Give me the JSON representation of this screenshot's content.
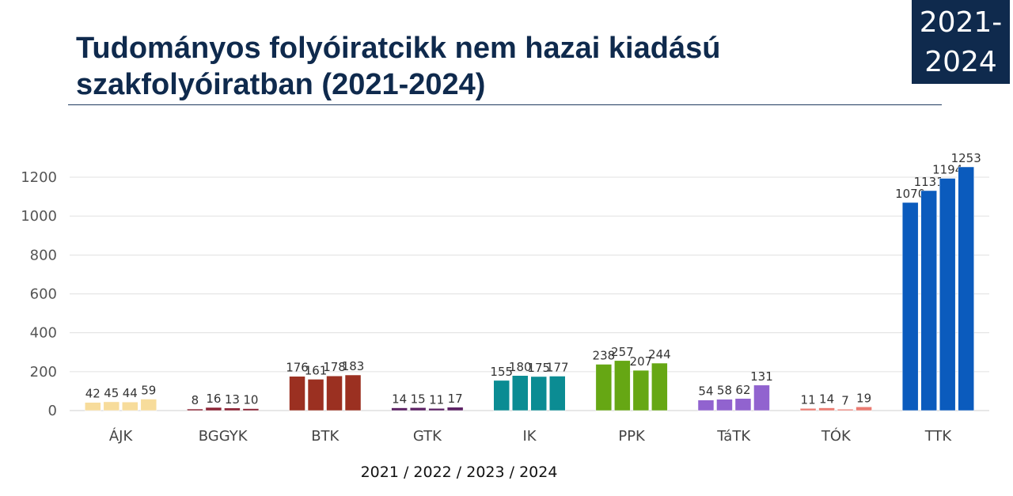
{
  "header": {
    "title_line1": "Tudományos folyóiratcikk nem hazai kiadású",
    "title_line2": "szakfolyóiratban (2021-2024)",
    "badge_line1": "2021-",
    "badge_line2": "2024"
  },
  "colors": {
    "title": "#0f2a4d",
    "badge_bg": "#0f2a4d",
    "grid": "#e0e0e0"
  },
  "chart_data": {
    "type": "bar",
    "title": "Tudományos folyóiratcikk nem hazai kiadású szakfolyóiratban (2021-2024)",
    "xlabel": "2021 / 2022 / 2023 / 2024",
    "ylabel": "",
    "ylim": [
      0,
      1300
    ],
    "yticks": [
      0,
      200,
      400,
      600,
      800,
      1000,
      1200
    ],
    "grid": true,
    "legend": "none",
    "categories": [
      "ÁJK",
      "BGGYK",
      "BTK",
      "GTK",
      "IK",
      "PPK",
      "TáTK",
      "TÓK",
      "TTK"
    ],
    "category_colors": [
      "#f7dc9b",
      "#8b2335",
      "#9b3021",
      "#5b2063",
      "#0b8c93",
      "#66a714",
      "#9163cf",
      "#ea7b72",
      "#0b5bbd"
    ],
    "groups": [
      {
        "category": "ÁJK",
        "values": [
          42,
          45,
          44,
          59
        ]
      },
      {
        "category": "BGGYK",
        "values": [
          8,
          16,
          13,
          10
        ]
      },
      {
        "category": "BTK",
        "values": [
          176,
          161,
          178,
          183
        ]
      },
      {
        "category": "GTK",
        "values": [
          14,
          15,
          11,
          17
        ]
      },
      {
        "category": "IK",
        "values": [
          155,
          180,
          175,
          177
        ]
      },
      {
        "category": "PPK",
        "values": [
          238,
          257,
          207,
          244
        ]
      },
      {
        "category": "TáTK",
        "values": [
          54,
          58,
          62,
          131
        ]
      },
      {
        "category": "TÓK",
        "values": [
          11,
          14,
          7,
          19
        ]
      },
      {
        "category": "TTK",
        "values": [
          1070,
          1131,
          1194,
          1253
        ]
      }
    ]
  }
}
